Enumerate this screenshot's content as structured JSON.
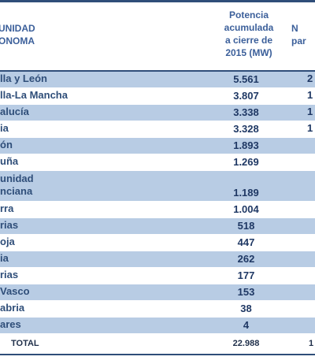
{
  "header": {
    "col1": "UNIDAD\nONOMA",
    "col2": "Potencia\nacumulada\na cierre de\n2015 (MW)",
    "col3": "N\npar"
  },
  "rows": [
    {
      "name": "lla y León",
      "value": "5.561",
      "col3": "2",
      "style": "blue"
    },
    {
      "name": "lla-La Mancha",
      "value": "3.807",
      "col3": "1",
      "style": "white"
    },
    {
      "name": "alucía",
      "value": "3.338",
      "col3": "1",
      "style": "blue"
    },
    {
      "name": "ia",
      "value": "3.328",
      "col3": "1",
      "style": "white"
    },
    {
      "name": "ón",
      "value": "1.893",
      "col3": "",
      "style": "blue"
    },
    {
      "name": "uña",
      "value": "1.269",
      "col3": "",
      "style": "white"
    },
    {
      "name": "unidad\nnciana",
      "value": "1.189",
      "col3": "",
      "style": "blue"
    },
    {
      "name": "rra",
      "value": "1.004",
      "col3": "",
      "style": "white"
    },
    {
      "name": "rias",
      "value": "518",
      "col3": "",
      "style": "blue"
    },
    {
      "name": "oja",
      "value": "447",
      "col3": "",
      "style": "white"
    },
    {
      "name": "ia",
      "value": "262",
      "col3": "",
      "style": "blue"
    },
    {
      "name": "rias",
      "value": "177",
      "col3": "",
      "style": "white"
    },
    {
      "name": "Vasco",
      "value": "153",
      "col3": "",
      "style": "blue"
    },
    {
      "name": "abria",
      "value": "38",
      "col3": "",
      "style": "white"
    },
    {
      "name": "ares",
      "value": "4",
      "col3": "",
      "style": "blue"
    }
  ],
  "total": {
    "label": "TOTAL",
    "value": "22.988",
    "col3": "1"
  }
}
